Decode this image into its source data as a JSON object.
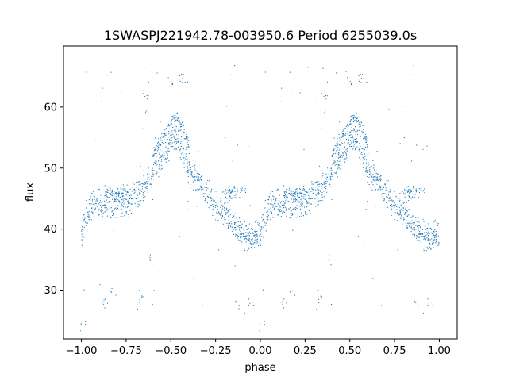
{
  "chart_data": {
    "type": "scatter",
    "title": "1SWASPJ221942.78-003950.6 Period 6255039.0s",
    "xlabel": "phase",
    "ylabel": "flux",
    "xlim": [
      -1.1,
      1.1
    ],
    "ylim": [
      22,
      70
    ],
    "xticks": [
      -1.0,
      -0.75,
      -0.5,
      -0.25,
      0.0,
      0.25,
      0.5,
      0.75,
      1.0
    ],
    "xtick_labels": [
      "−1.00",
      "−0.75",
      "−0.50",
      "−0.25",
      "0.00",
      "0.25",
      "0.50",
      "0.75",
      "1.00"
    ],
    "yticks": [
      30,
      40,
      50,
      60
    ],
    "ytick_labels": [
      "30",
      "40",
      "50",
      "60"
    ],
    "grid": false,
    "color": "#1f77b4",
    "series": [
      {
        "phase_profile": [
          [
            0.0,
            39.0
          ],
          [
            0.03,
            42.0
          ],
          [
            0.06,
            44.5
          ],
          [
            0.1,
            44.0
          ],
          [
            0.15,
            43.5
          ],
          [
            0.2,
            44.0
          ],
          [
            0.25,
            44.5
          ],
          [
            0.3,
            45.5
          ],
          [
            0.35,
            47.0
          ],
          [
            0.4,
            49.0
          ],
          [
            0.45,
            52.0
          ],
          [
            0.5,
            54.5
          ],
          [
            0.53,
            55.0
          ],
          [
            0.56,
            53.0
          ],
          [
            0.6,
            50.0
          ],
          [
            0.65,
            48.0
          ],
          [
            0.7,
            46.0
          ],
          [
            0.75,
            44.5
          ],
          [
            0.8,
            43.0
          ],
          [
            0.85,
            41.0
          ],
          [
            0.9,
            39.5
          ],
          [
            0.95,
            38.5
          ],
          [
            1.0,
            39.0
          ]
        ],
        "upper_branch": [
          [
            0.4,
            52.0
          ],
          [
            0.45,
            55.0
          ],
          [
            0.5,
            57.5
          ],
          [
            0.53,
            58.5
          ],
          [
            0.56,
            57.0
          ],
          [
            0.6,
            54.0
          ]
        ],
        "flat_segments": [
          [
            0.13,
            0.25,
            46.0
          ],
          [
            0.8,
            0.92,
            46.0
          ]
        ],
        "outlier_clusters": [
          [
            0.12,
            28.0
          ],
          [
            0.33,
            28.5
          ],
          [
            0.39,
            35.0
          ],
          [
            0.5,
            64.0
          ],
          [
            0.56,
            65.0
          ],
          [
            0.01,
            24.5
          ],
          [
            0.87,
            28.0
          ],
          [
            0.95,
            28.0
          ],
          [
            0.36,
            62.0
          ],
          [
            0.18,
            30.0
          ]
        ]
      }
    ]
  }
}
